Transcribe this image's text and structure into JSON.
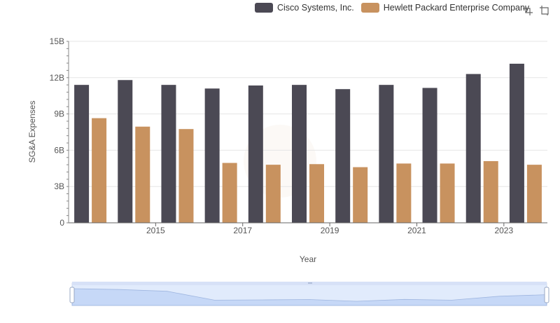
{
  "legend": {
    "series_0": "Cisco Systems, Inc.",
    "series_1": "Hewlett Packard Enterprise Company"
  },
  "toolbox": {
    "icons": [
      "zoom-icon",
      "restore-zoom-icon"
    ]
  },
  "colors": {
    "cisco": "#4b4954",
    "hpe": "#c8925f",
    "grid": "#e6e6e6",
    "slider_fill": "#dbe6fb"
  },
  "chart_data": {
    "type": "bar",
    "xlabel": "Year",
    "ylabel": "SG&A Expenses",
    "x_tick_labels": [
      "2015",
      "2017",
      "2019",
      "2021",
      "2023"
    ],
    "y_tick_labels": [
      "0",
      "3B",
      "6B",
      "9B",
      "12B",
      "15B"
    ],
    "ylim": [
      0,
      15000000000
    ],
    "categories": [
      "2014",
      "2015",
      "2016",
      "2017",
      "2018",
      "2019",
      "2020",
      "2021",
      "2022",
      "2023",
      "2024"
    ],
    "series": [
      {
        "name": "Cisco Systems, Inc.",
        "color": "#4b4954",
        "values": [
          11400000000,
          11800000000,
          11400000000,
          11100000000,
          11350000000,
          11400000000,
          11050000000,
          11400000000,
          11150000000,
          12300000000,
          13150000000
        ]
      },
      {
        "name": "Hewlett Packard Enterprise Company",
        "color": "#c8925f",
        "values": [
          8650000000,
          7950000000,
          7750000000,
          4950000000,
          4800000000,
          4850000000,
          4600000000,
          4900000000,
          4900000000,
          5100000000,
          4800000000
        ]
      }
    ],
    "grid": true,
    "legend_position": "top-right",
    "data_zoom": {
      "visible": true,
      "range_percent": [
        0,
        100
      ]
    }
  }
}
